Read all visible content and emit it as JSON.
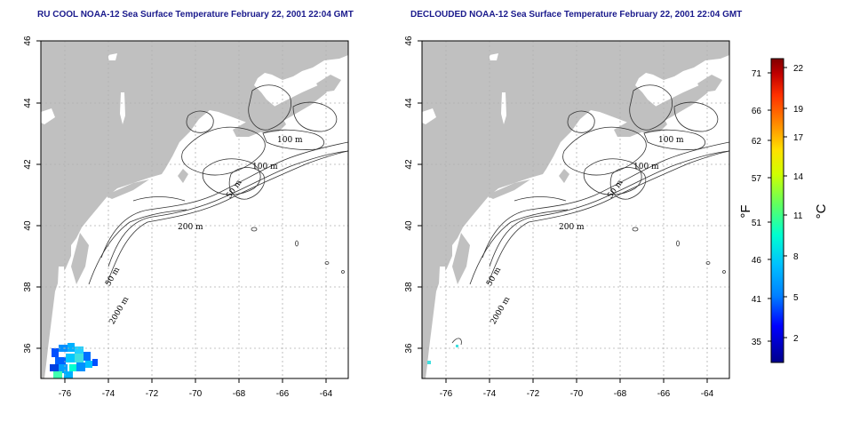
{
  "panels": [
    {
      "title": "RU COOL NOAA-12 Sea Surface Temperature February 22, 2001 22:04 GMT",
      "contour_labels": [
        "100 m",
        "100 m",
        "50 m",
        "200 m",
        "50 m",
        "2000 m"
      ]
    },
    {
      "title": "DECLOUDED NOAA-12 Sea Surface Temperature February 22, 2001 22:04 GMT",
      "contour_labels": [
        "100 m",
        "100 m",
        "50 m",
        "200 m",
        "50 m",
        "2000 m"
      ]
    }
  ],
  "axes": {
    "lon_ticks": [
      "-76",
      "-74",
      "-72",
      "-70",
      "-68",
      "-66",
      "-64"
    ],
    "lat_ticks": [
      "46",
      "44",
      "42",
      "40",
      "38",
      "36"
    ]
  },
  "colorbar": {
    "fahrenheit_ticks": [
      "71",
      "66",
      "62",
      "57",
      "51",
      "46",
      "41",
      "35"
    ],
    "celsius_ticks": [
      "22",
      "19",
      "17",
      "14",
      "11",
      "8",
      "5",
      "2"
    ],
    "unit_f": "°F",
    "unit_c": "°C",
    "colors": [
      "#00008b",
      "#0000ff",
      "#0080ff",
      "#00c0ff",
      "#00ffd0",
      "#60ff60",
      "#d0ff00",
      "#ffe000",
      "#ff9000",
      "#ff3000",
      "#c00000",
      "#800000"
    ]
  },
  "colors": {
    "land": "#c0c0c0",
    "ocean": "#ffffff",
    "grid": "#b0b0b0",
    "title": "#1a1a8c"
  }
}
